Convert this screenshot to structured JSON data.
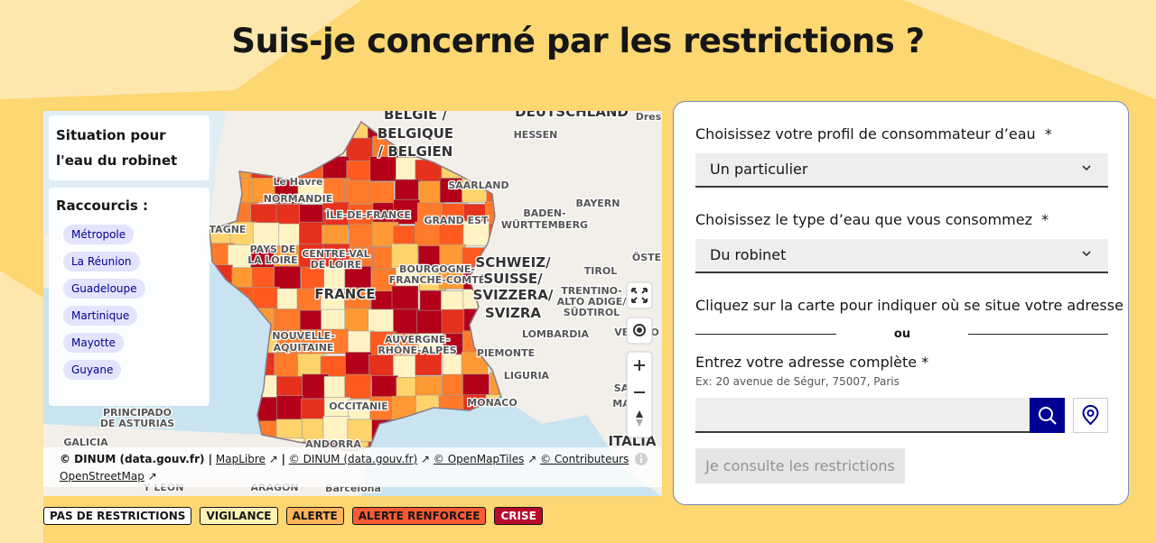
{
  "header": {
    "title": "Suis-je concerné par les restrictions ?"
  },
  "map": {
    "panel_title": "Situation pour l'eau du robinet",
    "shortcuts_title": "Raccourcis :",
    "shortcuts": [
      "Métropole",
      "La Réunion",
      "Guadeloupe",
      "Martinique",
      "Mayotte",
      "Guyane"
    ],
    "labels": [
      "DEUTSCHLAND",
      "Dres",
      "BELGIË /",
      "BELGIQUE",
      "/ BELGIEN",
      "HESSEN",
      "Le Havre",
      "NORMANDIE",
      "SAARLAND",
      "BAYERN",
      "ÎLE-DE-FRANCE",
      "GRAND EST",
      "BADEN-",
      "WÜRTTEMBERG",
      "ÖSTE",
      "TAGNE",
      "PAYS DE",
      "LA LOIRE",
      "CENTRE-VAL",
      "DE LOIRE",
      "BOURGOGNE-",
      "FRANCHE-COMTÉ",
      "SCHWEIZ/",
      "SUISSE/",
      "SVIZZERA/",
      "SVIZRA",
      "TIROL",
      "TRENTINO-",
      "ALTO ADIGE/",
      "SÜDTIROL",
      "FRANCE",
      "NOUVELLE-",
      "AQUITAINE",
      "AUVERGNE-",
      "RHÔNE-ALPES",
      "LOMBARDIA",
      "VENETO",
      "PIEMONTE",
      "LIGURIA",
      "OCCITANIE",
      "MONACO",
      "SA",
      "MA",
      "PRINCIPADO",
      "DE ASTURIAS",
      "GALICIA",
      "ANDORRA",
      "ITALIA",
      "Y LEÓN",
      "ARAGON",
      "Barcelona"
    ],
    "attribution": {
      "prefix": "© DINUM (data.gouv.fr) |",
      "links": [
        "MapLibre",
        "© DINUM (data.gouv.fr)",
        "© OpenMapTiles",
        "© Contributeurs OpenStreetMap"
      ],
      "separator": "|"
    }
  },
  "legend": [
    "PAS DE RESTRICTIONS",
    "VIGILANCE",
    "ALERTE",
    "ALERTE RENFORCEE",
    "CRISE"
  ],
  "form": {
    "profile_label": "Choisissez votre profil de consommateur d’eau",
    "required": "*",
    "profile_value": "Un particulier",
    "water_label": "Choisissez le type d’eau que vous consommez",
    "water_value": "Du robinet",
    "map_hint": "Cliquez sur la carte pour indiquer où se situe votre adresse",
    "or": "ou",
    "address_label": "Entrez votre adresse complète *",
    "address_hint": "Ex: 20 avenue de Ségur, 75007, Paris",
    "submit": "Je consulte les restrictions"
  }
}
